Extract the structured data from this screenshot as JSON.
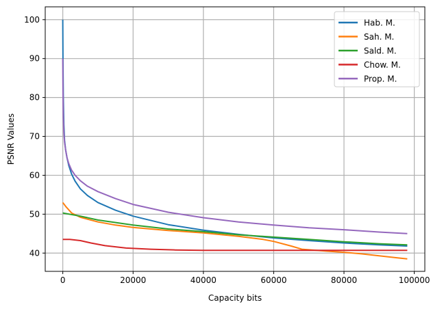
{
  "chart_data": {
    "type": "line",
    "title": "",
    "xlabel": "Capacity bits",
    "ylabel": "PSNR Values",
    "xlim": [
      -5000,
      103000
    ],
    "ylim": [
      35.3,
      103.3
    ],
    "xticks": [
      0,
      20000,
      40000,
      60000,
      80000,
      100000
    ],
    "yticks": [
      40,
      50,
      60,
      70,
      80,
      90,
      100
    ],
    "grid": true,
    "legend_position": "top-right",
    "series": [
      {
        "name": "Hab. M.",
        "color": "#1f77b4",
        "x": [
          0,
          50,
          150,
          300,
          500,
          800,
          1200,
          1700,
          2500,
          3500,
          5000,
          7000,
          10000,
          15000,
          20000,
          30000,
          40000,
          50000,
          60000,
          70000,
          80000,
          90000,
          98000
        ],
        "y": [
          100,
          90,
          80,
          73,
          69,
          66.5,
          64.5,
          62.5,
          60.3,
          58.5,
          56.5,
          54.8,
          53,
          51,
          49.5,
          47.3,
          45.9,
          44.8,
          43.9,
          43.2,
          42.6,
          42.1,
          41.8
        ]
      },
      {
        "name": "Sah. M.",
        "color": "#ff7f0e",
        "x": [
          0,
          1000,
          2500,
          5000,
          10000,
          15000,
          20000,
          30000,
          40000,
          50000,
          57000,
          60000,
          65000,
          68000,
          75000,
          80000,
          85000,
          90000,
          95000,
          98000
        ],
        "y": [
          53,
          51.8,
          50.3,
          49.2,
          48,
          47.2,
          46.6,
          45.8,
          45.2,
          44.3,
          43.5,
          43,
          41.8,
          41,
          40.5,
          40.2,
          39.8,
          39.3,
          38.8,
          38.5
        ]
      },
      {
        "name": "Sald. M.",
        "color": "#2ca02c",
        "x": [
          0,
          5000,
          10000,
          20000,
          30000,
          40000,
          50000,
          60000,
          70000,
          80000,
          90000,
          98000
        ],
        "y": [
          50.3,
          49.5,
          48.5,
          47.2,
          46.2,
          45.5,
          44.7,
          44.1,
          43.5,
          42.9,
          42.4,
          42.1
        ]
      },
      {
        "name": "Chow. M.",
        "color": "#d62728",
        "x": [
          0,
          2000,
          5000,
          8000,
          12000,
          18000,
          25000,
          32000,
          40000,
          60000,
          80000,
          98000
        ],
        "y": [
          43.5,
          43.5,
          43.2,
          42.6,
          41.9,
          41.3,
          41,
          40.8,
          40.7,
          40.7,
          40.7,
          40.7
        ]
      },
      {
        "name": "Prop. M.",
        "color": "#9467bd",
        "x": [
          0,
          50,
          150,
          300,
          500,
          800,
          1200,
          1700,
          2500,
          3500,
          5000,
          7000,
          10000,
          15000,
          20000,
          30000,
          40000,
          50000,
          60000,
          70000,
          80000,
          90000,
          98000
        ],
        "y": [
          90,
          82,
          75,
          71,
          68.5,
          66.5,
          64.5,
          63,
          61.3,
          60,
          58.6,
          57.2,
          55.8,
          54,
          52.5,
          50.5,
          49.1,
          48,
          47.2,
          46.5,
          46,
          45.4,
          45
        ]
      }
    ]
  }
}
